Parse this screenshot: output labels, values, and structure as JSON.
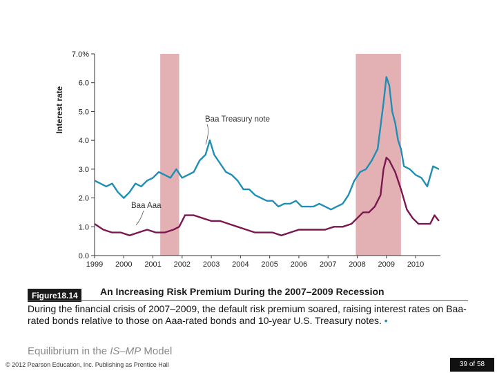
{
  "chart_data": {
    "type": "line",
    "ylabel": "Interest rate",
    "yticks": [
      "0.0",
      "1.0",
      "2.0",
      "3.0",
      "4.0",
      "5.0",
      "6.0",
      "7.0%"
    ],
    "ylim": [
      0,
      7
    ],
    "xticks": [
      "1999",
      "2000",
      "2001",
      "2002",
      "2003",
      "2004",
      "2005",
      "2006",
      "2007",
      "2008",
      "2009",
      "2010"
    ],
    "xlim": [
      1999,
      2010.85
    ],
    "recessions": [
      [
        2001.25,
        2001.9
      ],
      [
        2007.95,
        2009.5
      ]
    ],
    "annotations": [
      {
        "text": "Baa   Treasury note",
        "points_to": "Treasury note (Baa − 10-yr) spread",
        "at": [
          2002.95,
          3.9
        ]
      },
      {
        "text": "Baa   Aaa",
        "points_to": "Aaa (Baa − Aaa) spread",
        "at": [
          2001.0,
          1.1
        ]
      }
    ],
    "series": [
      {
        "name": "Baa − Treasury note spread",
        "color": "#1e8eb5",
        "x": [
          1999.0,
          1999.2,
          1999.4,
          1999.6,
          1999.8,
          2000.0,
          2000.2,
          2000.4,
          2000.6,
          2000.8,
          2001.0,
          2001.2,
          2001.4,
          2001.6,
          2001.8,
          2002.0,
          2002.2,
          2002.4,
          2002.6,
          2002.8,
          2002.95,
          2003.1,
          2003.3,
          2003.5,
          2003.7,
          2003.9,
          2004.1,
          2004.3,
          2004.5,
          2004.7,
          2004.9,
          2005.1,
          2005.3,
          2005.5,
          2005.7,
          2005.9,
          2006.1,
          2006.3,
          2006.5,
          2006.7,
          2006.9,
          2007.1,
          2007.3,
          2007.5,
          2007.7,
          2007.9,
          2008.1,
          2008.3,
          2008.5,
          2008.7,
          2008.9,
          2009.0,
          2009.1,
          2009.2,
          2009.3,
          2009.4,
          2009.5,
          2009.6,
          2009.8,
          2010.0,
          2010.2,
          2010.4,
          2010.6,
          2010.8
        ],
        "values": [
          2.6,
          2.5,
          2.4,
          2.5,
          2.2,
          2.0,
          2.2,
          2.5,
          2.4,
          2.6,
          2.7,
          2.9,
          2.8,
          2.7,
          3.0,
          2.7,
          2.8,
          2.9,
          3.3,
          3.5,
          4.0,
          3.5,
          3.2,
          2.9,
          2.8,
          2.6,
          2.3,
          2.3,
          2.1,
          2.0,
          1.9,
          1.9,
          1.7,
          1.8,
          1.8,
          1.9,
          1.7,
          1.7,
          1.7,
          1.8,
          1.7,
          1.6,
          1.7,
          1.8,
          2.1,
          2.6,
          2.9,
          3.0,
          3.3,
          3.7,
          5.3,
          6.2,
          5.9,
          5.0,
          4.6,
          4.0,
          3.7,
          3.1,
          3.0,
          2.8,
          2.7,
          2.4,
          3.1,
          3.0
        ]
      },
      {
        "name": "Baa − Aaa spread",
        "color": "#7a1650",
        "x": [
          1999.0,
          1999.3,
          1999.6,
          1999.9,
          2000.2,
          2000.5,
          2000.8,
          2001.1,
          2001.4,
          2001.7,
          2001.9,
          2002.1,
          2002.4,
          2002.7,
          2003.0,
          2003.3,
          2003.6,
          2003.9,
          2004.2,
          2004.5,
          2004.8,
          2005.1,
          2005.4,
          2005.7,
          2006.0,
          2006.3,
          2006.6,
          2006.9,
          2007.2,
          2007.5,
          2007.8,
          2008.0,
          2008.2,
          2008.4,
          2008.6,
          2008.8,
          2008.9,
          2009.0,
          2009.1,
          2009.2,
          2009.3,
          2009.5,
          2009.7,
          2009.9,
          2010.1,
          2010.3,
          2010.5,
          2010.65,
          2010.8
        ],
        "values": [
          1.1,
          0.9,
          0.8,
          0.8,
          0.7,
          0.8,
          0.9,
          0.8,
          0.8,
          0.9,
          1.0,
          1.4,
          1.4,
          1.3,
          1.2,
          1.2,
          1.1,
          1.0,
          0.9,
          0.8,
          0.8,
          0.8,
          0.7,
          0.8,
          0.9,
          0.9,
          0.9,
          0.9,
          1.0,
          1.0,
          1.1,
          1.3,
          1.5,
          1.5,
          1.7,
          2.1,
          3.0,
          3.4,
          3.3,
          3.1,
          2.9,
          2.3,
          1.6,
          1.3,
          1.1,
          1.1,
          1.1,
          1.4,
          1.2
        ]
      }
    ]
  },
  "figure": {
    "badge": "Figure18.14",
    "title": "An Increasing Risk Premium During the 2007–2009 Recession",
    "caption": "During the financial crisis of 2007–2009, the default risk premium soared, raising interest rates on Baa-rated bonds relative to those on Aaa-rated bonds and 10-year U.S. Treasury notes.",
    "caption_bullet": "•"
  },
  "section": {
    "prefix": "Equilibrium in the ",
    "italic": "IS–MP",
    "suffix": " Model"
  },
  "footer": {
    "copyright": "© 2012 Pearson Education, Inc. Publishing as Prentice Hall",
    "page": "39 of 58"
  },
  "colors": {
    "recession": "#e3b1b4",
    "axis": "#333333"
  }
}
